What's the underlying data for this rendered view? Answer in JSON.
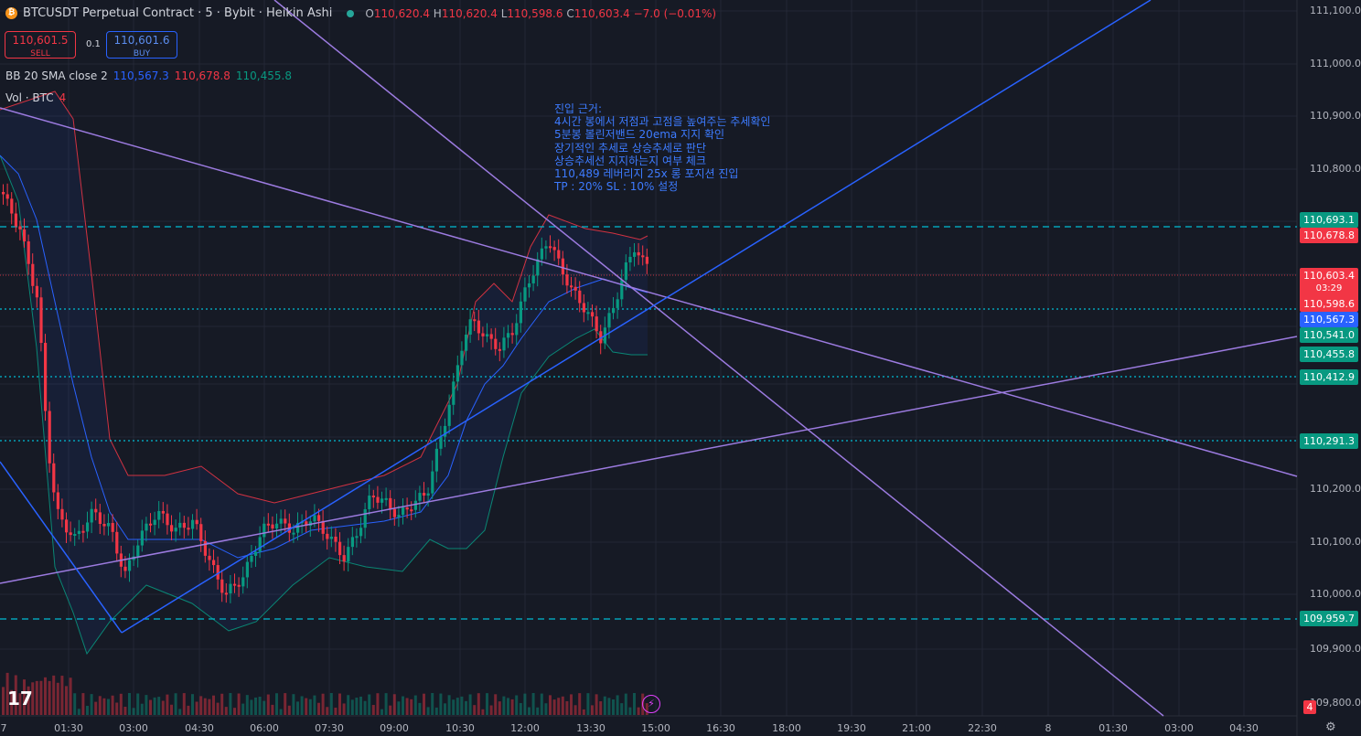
{
  "header": {
    "title": "BTCUSDT Perpetual Contract · 5 · Bybit · Heikin Ashi",
    "ohlc": {
      "o_label": "O",
      "o": "110,620.4",
      "h_label": "H",
      "h": "110,620.4",
      "l_label": "L",
      "l": "110,598.6",
      "c_label": "C",
      "c": "110,603.4",
      "change": "−7.0 (−0.01%)"
    }
  },
  "trade": {
    "sell_price": "110,601.5",
    "sell_label": "SELL",
    "spread": "0.1",
    "buy_price": "110,601.6",
    "buy_label": "BUY"
  },
  "indicators": {
    "bb_label": "BB 20 SMA close 2",
    "bb_basis": "110,567.3",
    "bb_upper": "110,678.8",
    "bb_lower": "110,455.8",
    "vol_label": "Vol · BTC",
    "vol_value": "4"
  },
  "note": {
    "lines": [
      "진입 근거:",
      "4시간 봉에서 저점과 고점을 높여주는 추세확인",
      "5분봉 볼린저밴드 20ema 지지 확인",
      "장기적인 추세로 상승추세로 판단",
      "상승추세선 지지하는지 여부 체크",
      "110,489 레버리지 25x 롱 포지션 진입",
      "TP : 20% SL : 10% 설정"
    ]
  },
  "price_axis": {
    "labels": [
      "111,100.0",
      "111,000.0",
      "110,900.0",
      "110,800.0",
      "110,200.0",
      "110,100.0",
      "110,000.0",
      "109,900.0",
      "109,800.0"
    ],
    "tags": [
      {
        "text": "110,693.1",
        "color": "#089981"
      },
      {
        "text": "110,678.8",
        "color": "#f23645"
      },
      {
        "text": "110,603.4",
        "color": "#f23645"
      },
      {
        "text": "03:29",
        "color": "#f23645"
      },
      {
        "text": "110,598.6",
        "color": "#f23645"
      },
      {
        "text": "110,567.3",
        "color": "#2962ff"
      },
      {
        "text": "110,541.0",
        "color": "#089981"
      },
      {
        "text": "110,455.8",
        "color": "#089981"
      },
      {
        "text": "110,412.9",
        "color": "#089981"
      },
      {
        "text": "110,291.3",
        "color": "#089981"
      },
      {
        "text": "109,959.7",
        "color": "#089981"
      }
    ],
    "volume_badge": "4"
  },
  "time_axis": {
    "labels": [
      "7",
      "01:30",
      "03:00",
      "04:30",
      "06:00",
      "07:30",
      "09:00",
      "10:30",
      "12:00",
      "13:30",
      "15:00",
      "16:30",
      "18:00",
      "19:30",
      "21:00",
      "22:30",
      "8",
      "01:30",
      "03:00",
      "04:30"
    ]
  },
  "logo_text": "17",
  "icons": {
    "flash": "flash-icon",
    "settings": "settings-icon"
  },
  "colors": {
    "up": "#089981",
    "down": "#f23645",
    "basis": "#2962ff",
    "trend": "#2962ff",
    "lines": "#9c7be0",
    "dashed": "#00bcd4"
  }
}
